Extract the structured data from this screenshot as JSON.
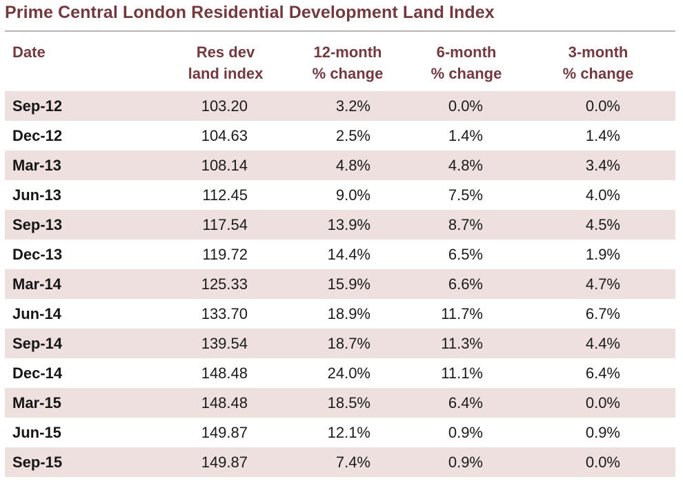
{
  "title": "Prime Central London Residential Development Land Index",
  "colors": {
    "title": "#73393f",
    "header": "#73393f",
    "shaded_row": "#ede0df",
    "rule": "#b8b6b4"
  },
  "columns": [
    {
      "line1": "Date",
      "line2": ""
    },
    {
      "line1": "Res dev",
      "line2": "land index"
    },
    {
      "line1": "12-month",
      "line2": "% change"
    },
    {
      "line1": "6-month",
      "line2": "% change"
    },
    {
      "line1": "3-month",
      "line2": "% change"
    }
  ],
  "rows": [
    {
      "date": "Sep-12",
      "index": "103.20",
      "m12": "3.2%",
      "m6": "0.0%",
      "m3": "0.0%"
    },
    {
      "date": "Dec-12",
      "index": "104.63",
      "m12": "2.5%",
      "m6": "1.4%",
      "m3": "1.4%"
    },
    {
      "date": "Mar-13",
      "index": "108.14",
      "m12": "4.8%",
      "m6": "4.8%",
      "m3": "3.4%"
    },
    {
      "date": "Jun-13",
      "index": "112.45",
      "m12": "9.0%",
      "m6": "7.5%",
      "m3": "4.0%"
    },
    {
      "date": "Sep-13",
      "index": "117.54",
      "m12": "13.9%",
      "m6": "8.7%",
      "m3": "4.5%"
    },
    {
      "date": "Dec-13",
      "index": "119.72",
      "m12": "14.4%",
      "m6": "6.5%",
      "m3": "1.9%"
    },
    {
      "date": "Mar-14",
      "index": "125.33",
      "m12": "15.9%",
      "m6": "6.6%",
      "m3": "4.7%"
    },
    {
      "date": "Jun-14",
      "index": "133.70",
      "m12": "18.9%",
      "m6": "11.7%",
      "m3": "6.7%"
    },
    {
      "date": "Sep-14",
      "index": "139.54",
      "m12": "18.7%",
      "m6": "11.3%",
      "m3": "4.4%"
    },
    {
      "date": "Dec-14",
      "index": "148.48",
      "m12": "24.0%",
      "m6": "11.1%",
      "m3": "6.4%"
    },
    {
      "date": "Mar-15",
      "index": "148.48",
      "m12": "18.5%",
      "m6": "6.4%",
      "m3": "0.0%"
    },
    {
      "date": "Jun-15",
      "index": "149.87",
      "m12": "12.1%",
      "m6": "0.9%",
      "m3": "0.9%"
    },
    {
      "date": "Sep-15",
      "index": "149.87",
      "m12": "7.4%",
      "m6": "0.9%",
      "m3": "0.0%"
    }
  ]
}
